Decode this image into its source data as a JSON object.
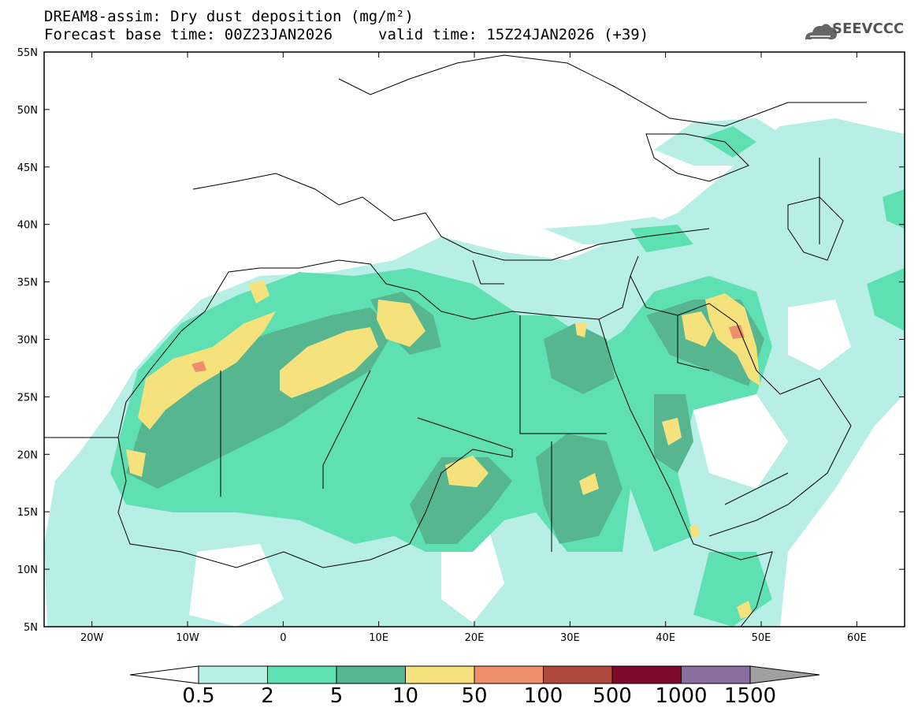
{
  "header": {
    "line1": "DREAM8-assim: Dry dust deposition (mg/m²)",
    "line2a": "Forecast base time: 00Z23JAN2026",
    "line2b": "valid time: 15Z24JAN2026 (+39)",
    "logo_text": "SEEVCCC",
    "logo_icon": "cloud-icon"
  },
  "map": {
    "lon_range": [
      -25,
      65
    ],
    "lat_range": [
      5,
      55
    ],
    "lat_labels": [
      "55N",
      "50N",
      "45N",
      "40N",
      "35N",
      "30N",
      "25N",
      "20N",
      "15N",
      "10N",
      "5N"
    ],
    "lon_labels": [
      "20W",
      "10W",
      "0",
      "10E",
      "20E",
      "30E",
      "40E",
      "50E",
      "60E"
    ]
  },
  "colorbar": {
    "labels": [
      "0.5",
      "2",
      "5",
      "10",
      "50",
      "100",
      "500",
      "1000",
      "1500"
    ],
    "colors": [
      "#b7efe6",
      "#5fe0b2",
      "#56b68f",
      "#f6e27c",
      "#ec8f6a",
      "#b04a3f",
      "#7d0a2a",
      "#8a6ea0"
    ],
    "under_color": "#ffffff",
    "over_color": "#a0a0a0"
  }
}
